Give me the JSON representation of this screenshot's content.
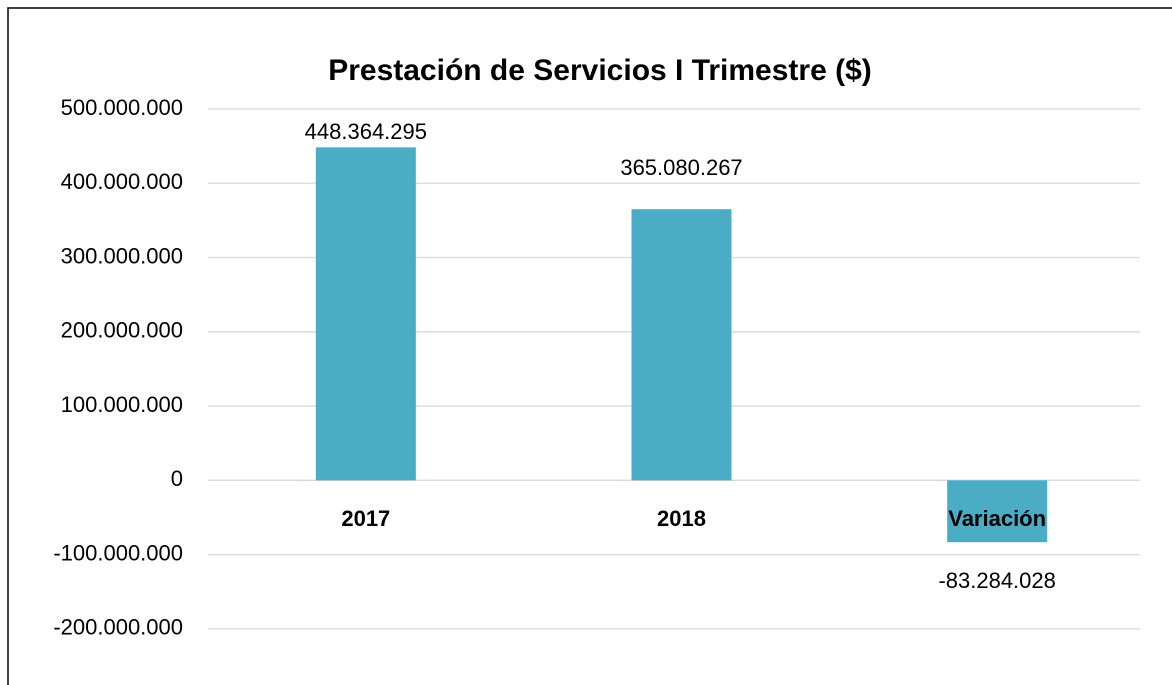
{
  "chart_data": {
    "type": "bar",
    "title": "Prestación de Servicios I Trimestre ($)",
    "categories": [
      "2017",
      "2018",
      "Variación"
    ],
    "values": [
      448364295,
      365080267,
      -83284028
    ],
    "value_labels": [
      "448.364.295",
      "365.080.267",
      "-83.284.028"
    ],
    "color": "#4bacc6",
    "ylim": [
      -250000000,
      500000000
    ],
    "yticks": [
      {
        "value": 500000000,
        "label": "500.000.000"
      },
      {
        "value": 400000000,
        "label": "400.000.000"
      },
      {
        "value": 300000000,
        "label": "300.000.000"
      },
      {
        "value": 200000000,
        "label": "200.000.000"
      },
      {
        "value": 100000000,
        "label": "100.000.000"
      },
      0,
      {
        "value": -100000000,
        "label": "-100.000.000"
      },
      {
        "value": -200000000,
        "label": "-200.000.000"
      }
    ],
    "grid": true
  }
}
